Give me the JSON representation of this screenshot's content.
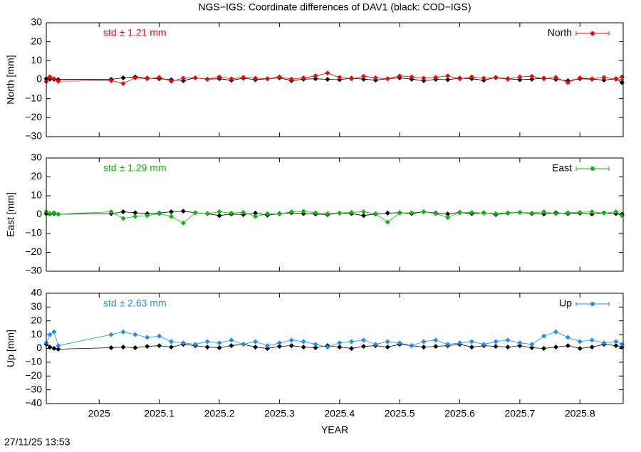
{
  "title": "NGS−IGS: Coordinate differences of DAV1 (black: COD−IGS)",
  "timestamp": "27/11/25 13:53",
  "chart_data": [
    {
      "type": "line",
      "ylabel": "North [mm]",
      "annotation": "std ± 1.21 mm",
      "x": [
        2024.912,
        2024.918,
        2024.925,
        2024.932,
        2025.02,
        2025.04,
        2025.06,
        2025.08,
        2025.1,
        2025.12,
        2025.14,
        2025.16,
        2025.18,
        2025.2,
        2025.22,
        2025.24,
        2025.26,
        2025.28,
        2025.3,
        2025.32,
        2025.34,
        2025.36,
        2025.38,
        2025.4,
        2025.42,
        2025.44,
        2025.46,
        2025.48,
        2025.5,
        2025.52,
        2025.54,
        2025.56,
        2025.58,
        2025.6,
        2025.62,
        2025.64,
        2025.66,
        2025.68,
        2025.7,
        2025.72,
        2025.74,
        2025.76,
        2025.78,
        2025.8,
        2025.82,
        2025.84,
        2025.86,
        2025.87
      ],
      "series": [
        {
          "color": "#000000",
          "values": [
            0.5,
            0.3,
            0.2,
            0.1,
            0.2,
            1,
            1.5,
            0.8,
            0.5,
            0,
            -0.5,
            1,
            0.3,
            0.5,
            -0.3,
            0.8,
            0,
            0.5,
            1,
            -0.5,
            0.3,
            0.5,
            0.2,
            0,
            0.8,
            0.3,
            -0.2,
            0.5,
            1,
            0.3,
            -0.5,
            0.2,
            0,
            0.8,
            0.5,
            -0.3,
            1.2,
            0.5,
            0,
            0.3,
            0.8,
            0.2,
            -0.5,
            0.5,
            0.3,
            -0.2,
            0.5,
            -1.5
          ]
        },
        {
          "name": "North",
          "color": "#ff0000",
          "values": [
            -1,
            1.5,
            0.5,
            -0.8,
            -0.5,
            -2,
            1,
            0.5,
            1.2,
            -0.8,
            0.8,
            1,
            0.3,
            1.5,
            0.5,
            1.2,
            0.8,
            0.5,
            1.5,
            0.3,
            1,
            2,
            3.5,
            1.2,
            0.5,
            1.8,
            1,
            0.5,
            2,
            1.5,
            0.8,
            1.2,
            2,
            0.5,
            1.5,
            0.8,
            1,
            0.3,
            1.5,
            1.8,
            0.5,
            1.2,
            -1.5,
            1,
            0.5,
            1.2,
            0.3,
            1.5
          ]
        }
      ],
      "xlim": [
        2024.912,
        2025.872
      ],
      "xticks": [
        2025,
        2025.1,
        2025.2,
        2025.3,
        2025.4,
        2025.5,
        2025.6,
        2025.7,
        2025.8
      ],
      "ylim": [
        -30,
        30
      ],
      "yticks": [
        {
          "value": -30,
          "label": "−30"
        },
        {
          "value": -20,
          "label": "−20"
        },
        {
          "value": -10,
          "label": "−10"
        },
        0,
        10,
        20,
        30
      ],
      "legend": "top-right"
    },
    {
      "type": "line",
      "ylabel": "East [mm]",
      "annotation": "std ± 1.29 mm",
      "x": [
        2024.912,
        2024.918,
        2024.925,
        2024.932,
        2025.02,
        2025.04,
        2025.06,
        2025.08,
        2025.1,
        2025.12,
        2025.14,
        2025.16,
        2025.18,
        2025.2,
        2025.22,
        2025.24,
        2025.26,
        2025.28,
        2025.3,
        2025.32,
        2025.34,
        2025.36,
        2025.38,
        2025.4,
        2025.42,
        2025.44,
        2025.46,
        2025.48,
        2025.5,
        2025.52,
        2025.54,
        2025.56,
        2025.58,
        2025.6,
        2025.62,
        2025.64,
        2025.66,
        2025.68,
        2025.7,
        2025.72,
        2025.74,
        2025.76,
        2025.78,
        2025.8,
        2025.82,
        2025.84,
        2025.86,
        2025.87
      ],
      "series": [
        {
          "color": "#000000",
          "values": [
            0.5,
            0.3,
            0.5,
            0.2,
            0.5,
            1.5,
            1,
            0.5,
            0.8,
            1.5,
            1.8,
            1,
            0.5,
            -0.5,
            0.3,
            0,
            0.8,
            -0.3,
            0.5,
            1,
            0.5,
            0.3,
            0,
            0.8,
            0.5,
            -0.5,
            0.3,
            0.8,
            1,
            0.5,
            1.5,
            0.8,
            0.3,
            1.2,
            0.5,
            1,
            0,
            0.8,
            1.2,
            0.5,
            0.3,
            1,
            0.5,
            0.8,
            0.3,
            1,
            0.5,
            0.2
          ]
        },
        {
          "name": "East",
          "color": "#00c000",
          "values": [
            1.5,
            0.5,
            1,
            0.2,
            1.5,
            -2,
            -1,
            -0.5,
            0.5,
            -1,
            -4.5,
            1,
            0.5,
            1.5,
            0.8,
            1.2,
            -1,
            0.5,
            0.3,
            1.5,
            1.8,
            1,
            0.5,
            0.8,
            1.2,
            1.5,
            0.5,
            -4,
            0.8,
            1,
            1.5,
            0.5,
            -1.5,
            1,
            1.2,
            0.8,
            0.5,
            1,
            1.2,
            0.8,
            1.5,
            0.5,
            1,
            1.2,
            1.5,
            0.8,
            1.5,
            -0.5
          ]
        }
      ],
      "xlim": [
        2024.912,
        2025.872
      ],
      "xticks": [
        2025,
        2025.1,
        2025.2,
        2025.3,
        2025.4,
        2025.5,
        2025.6,
        2025.7,
        2025.8
      ],
      "ylim": [
        -30,
        30
      ],
      "yticks": [
        {
          "value": -30,
          "label": "−30"
        },
        {
          "value": -20,
          "label": "−20"
        },
        {
          "value": -10,
          "label": "−10"
        },
        0,
        10,
        20,
        30
      ],
      "legend": "top-right"
    },
    {
      "type": "line",
      "ylabel": "Up [mm]",
      "xlabel": "YEAR",
      "annotation": "std ± 2.63 mm",
      "x": [
        2024.912,
        2024.918,
        2024.925,
        2024.932,
        2025.02,
        2025.04,
        2025.06,
        2025.08,
        2025.1,
        2025.12,
        2025.14,
        2025.16,
        2025.18,
        2025.2,
        2025.22,
        2025.24,
        2025.26,
        2025.28,
        2025.3,
        2025.32,
        2025.34,
        2025.36,
        2025.38,
        2025.4,
        2025.42,
        2025.44,
        2025.46,
        2025.48,
        2025.5,
        2025.52,
        2025.54,
        2025.56,
        2025.58,
        2025.6,
        2025.62,
        2025.64,
        2025.66,
        2025.68,
        2025.7,
        2025.72,
        2025.74,
        2025.76,
        2025.78,
        2025.8,
        2025.82,
        2025.84,
        2025.86,
        2025.87
      ],
      "series": [
        {
          "color": "#000000",
          "values": [
            3,
            1,
            0,
            -0.5,
            0.5,
            1,
            0.5,
            1.5,
            2,
            1,
            3,
            2,
            1,
            0.5,
            2,
            3,
            1,
            0,
            1.5,
            2,
            1,
            0.5,
            2,
            1,
            0,
            1.5,
            2,
            1,
            3,
            2,
            1,
            1.5,
            2,
            3,
            1,
            2,
            1.5,
            1,
            2,
            0.5,
            0,
            1,
            2,
            0,
            1,
            3,
            2,
            1
          ]
        },
        {
          "name": "Up",
          "color": "#1a8cff",
          "values": [
            4,
            10,
            12,
            2,
            10,
            12,
            10,
            8,
            9,
            5,
            4,
            3,
            5,
            4,
            6,
            3,
            5,
            2,
            4,
            6,
            5,
            3,
            1,
            4,
            5,
            6,
            3,
            5,
            4,
            2,
            5,
            6,
            3,
            4,
            5,
            3,
            5,
            6,
            4,
            3,
            9,
            12,
            8,
            5,
            6,
            4,
            5,
            3
          ]
        }
      ],
      "xlim": [
        2024.912,
        2025.872
      ],
      "xticks": [
        2025,
        2025.1,
        2025.2,
        2025.3,
        2025.4,
        2025.5,
        2025.6,
        2025.7,
        2025.8
      ],
      "ylim": [
        -40,
        40
      ],
      "yticks": [
        {
          "value": -40,
          "label": "−40"
        },
        {
          "value": -30,
          "label": "−30"
        },
        {
          "value": -20,
          "label": "−20"
        },
        {
          "value": -10,
          "label": "−10"
        },
        0,
        10,
        20,
        30,
        40
      ],
      "legend": "top-right"
    }
  ]
}
